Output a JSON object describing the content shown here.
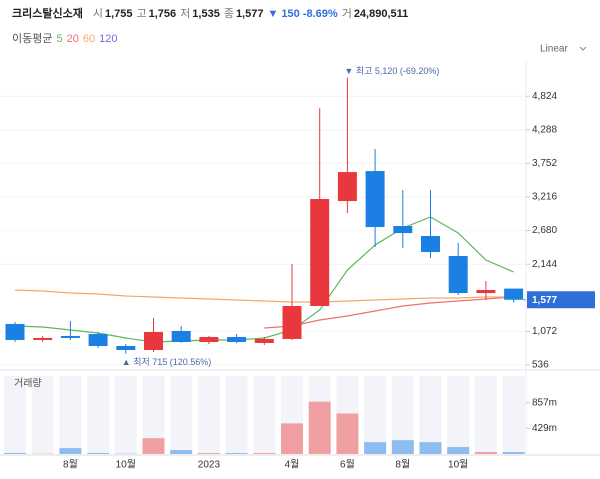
{
  "header": {
    "name": "크리스탈신소재",
    "items": [
      {
        "label": "시",
        "value": "1,755"
      },
      {
        "label": "고",
        "value": "1,756"
      },
      {
        "label": "저",
        "value": "1,535"
      },
      {
        "label": "종",
        "value": "1,577"
      },
      {
        "value": "▼ 150 -8.69%"
      },
      {
        "label": "거",
        "value": "24,890,511"
      }
    ]
  },
  "chart_data": {
    "type": "candlestick",
    "scale_mode": "Linear",
    "categories": [
      null,
      null,
      "8월",
      null,
      "10월",
      null,
      null,
      "2023",
      null,
      null,
      "4월",
      null,
      "6월",
      null,
      "8월",
      null,
      "10월",
      null,
      null
    ],
    "open": [
      1190,
      935,
      999,
      1030,
      839,
      775,
      1078,
      903,
      983,
      887,
      951,
      1477,
      3152,
      3630,
      2753,
      2594,
      2275,
      1684,
      1755
    ],
    "high": [
      1222,
      999,
      1238,
      1062,
      871,
      1286,
      1158,
      999,
      1030,
      983,
      2147,
      4635,
      5120,
      3981,
      3327,
      3327,
      2482,
      1876,
      1756
    ],
    "low": [
      903,
      903,
      935,
      807,
      715,
      743,
      887,
      871,
      887,
      855,
      935,
      1477,
      2960,
      2418,
      2402,
      2243,
      1652,
      1573,
      1535
    ],
    "close": [
      935,
      967,
      967,
      839,
      775,
      1062,
      903,
      983,
      903,
      951,
      1477,
      3184,
      3614,
      2737,
      2641,
      2338,
      1684,
      1732,
      1577
    ],
    "up_color": "#e8383d",
    "down_color": "#1b7fe3",
    "ylim": [
      456,
      5370
    ],
    "yticks": [
      {
        "value": 536,
        "label": "536"
      },
      {
        "value": 1072,
        "label": "1,072"
      },
      {
        "value": 2144,
        "label": "2,144"
      },
      {
        "value": 2680,
        "label": "2,680"
      },
      {
        "value": 3216,
        "label": "3,216"
      },
      {
        "value": 3752,
        "label": "3,752"
      },
      {
        "value": 4288,
        "label": "4,288"
      },
      {
        "value": 4824,
        "label": "4,824"
      }
    ],
    "current_price": {
      "value": 1577,
      "label": "1,577",
      "color": "#2f6fd8"
    },
    "annotations": {
      "high": "▼ 최고 5,120 (-69.20%)",
      "low": "▲ 최저 715 (120.56%)"
    },
    "moving_average": {
      "label": "이동평균",
      "series": [
        {
          "name": "5",
          "color": "#5cb85c",
          "values": [
            1158,
            1142,
            1094,
            1046,
            967,
            903,
            919,
            935,
            935,
            967,
            1094,
            1413,
            2051,
            2450,
            2721,
            2897,
            2641,
            2211,
            2019
          ]
        },
        {
          "name": "20",
          "color": "#ef6f6f",
          "values": [
            null,
            null,
            null,
            null,
            null,
            null,
            null,
            null,
            null,
            1126,
            1158,
            1254,
            1318,
            1397,
            1477,
            1525,
            1557,
            1589,
            1621
          ]
        },
        {
          "name": "60",
          "color": "#f3a86a",
          "values": [
            1732,
            1716,
            1684,
            1668,
            1636,
            1620,
            1605,
            1589,
            1573,
            1557,
            1541,
            1541,
            1557,
            1573,
            1589,
            1605,
            1605,
            1620,
            1620
          ]
        },
        {
          "name": "120",
          "color": "#7b68d8"
        }
      ]
    },
    "volume": {
      "label": "거래량",
      "values": [
        16,
        5,
        99,
        16,
        5,
        264,
        66,
        16,
        16,
        16,
        512,
        874,
        677,
        198,
        231,
        198,
        116,
        33,
        33
      ],
      "up_color": "#f0a0a3",
      "down_color": "#8dbdf0",
      "ylim": [
        0,
        1303
      ],
      "yticks": [
        {
          "value": 429,
          "label": "429m"
        },
        {
          "value": 857,
          "label": "857m"
        }
      ]
    }
  }
}
